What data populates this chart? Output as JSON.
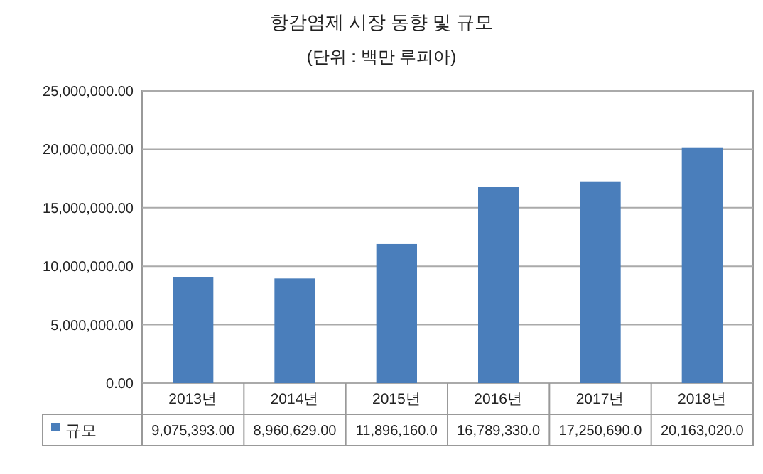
{
  "chart_data": {
    "type": "bar",
    "title": "항감염제 시장 동향 및 규모",
    "subtitle": "(단위 : 백만 루피아)",
    "categories": [
      "2013년",
      "2014년",
      "2015년",
      "2016년",
      "2017년",
      "2018년"
    ],
    "series": [
      {
        "name": "규모",
        "color": "#4a7ebb",
        "values": [
          9075393,
          8960629,
          11896160,
          16789330,
          17250690,
          20163020
        ],
        "value_labels": [
          "9,075,393.00",
          "8,960,629.00",
          "11,896,160.0",
          "16,789,330.0",
          "17,250,690.0",
          "20,163,020.0"
        ]
      }
    ],
    "ylim": [
      0,
      25000000
    ],
    "yticks": [
      {
        "value": 0,
        "label": "0.00"
      },
      {
        "value": 5000000,
        "label": "5,000,000.00"
      },
      {
        "value": 10000000,
        "label": "10,000,000.00"
      },
      {
        "value": 15000000,
        "label": "15,000,000.00"
      },
      {
        "value": 20000000,
        "label": "20,000,000.00"
      },
      {
        "value": 25000000,
        "label": "25,000,000.00"
      }
    ],
    "grid": "y",
    "legend": "bottom"
  }
}
